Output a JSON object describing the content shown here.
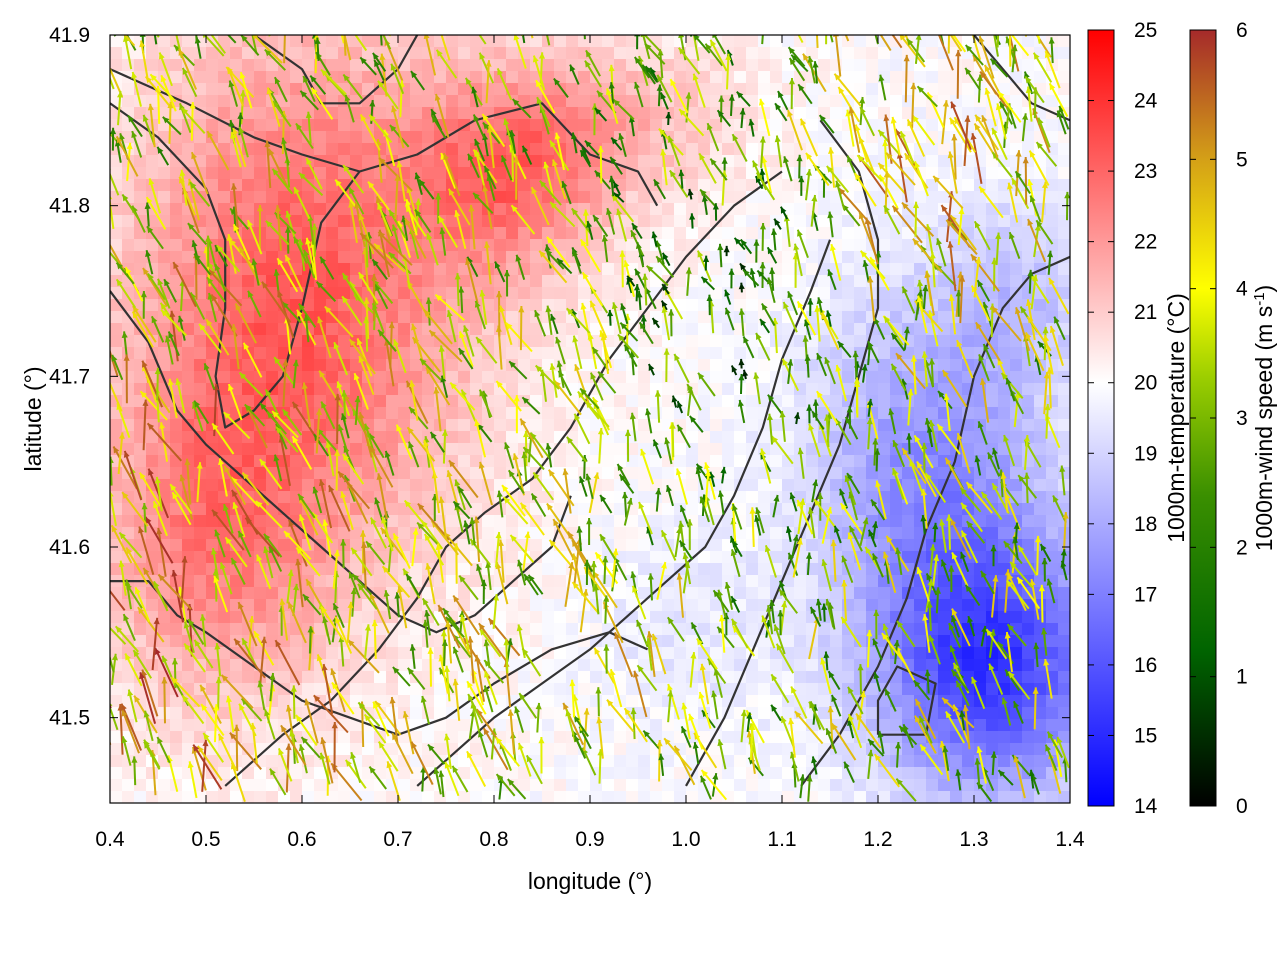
{
  "chart_data": {
    "type": "heatmap",
    "title": "",
    "xlabel": "longitude (°)",
    "ylabel": "latitude (°)",
    "xlim": [
      0.4,
      1.4
    ],
    "ylim": [
      41.45,
      41.9
    ],
    "x_ticks": [
      {
        "value": 0.4,
        "label": "0.4"
      },
      {
        "value": 0.5,
        "label": "0.5"
      },
      {
        "value": 0.6,
        "label": "0.6"
      },
      {
        "value": 0.7,
        "label": "0.7"
      },
      {
        "value": 0.8,
        "label": "0.8"
      },
      {
        "value": 0.9,
        "label": "0.9"
      },
      {
        "value": 1.0,
        "label": "1.0"
      },
      {
        "value": 1.1,
        "label": "1.1"
      },
      {
        "value": 1.2,
        "label": "1.2"
      },
      {
        "value": 1.3,
        "label": "1.3"
      },
      {
        "value": 1.4,
        "label": "1.4"
      }
    ],
    "y_ticks": [
      {
        "value": 41.5,
        "label": "41.5"
      },
      {
        "value": 41.6,
        "label": "41.6"
      },
      {
        "value": 41.7,
        "label": "41.7"
      },
      {
        "value": 41.8,
        "label": "41.8"
      },
      {
        "value": 41.9,
        "label": "41.9"
      }
    ],
    "grid": false,
    "temperature_colorbar": {
      "label": "1000m-temperature (°C)",
      "range": [
        14,
        25
      ],
      "colors": [
        "#0000ff",
        "#ffffff",
        "#ff0000"
      ],
      "ticks": [
        {
          "value": 14,
          "label": "14"
        },
        {
          "value": 15,
          "label": "15"
        },
        {
          "value": 16,
          "label": "16"
        },
        {
          "value": 17,
          "label": "17"
        },
        {
          "value": 18,
          "label": "18"
        },
        {
          "value": 19,
          "label": "19"
        },
        {
          "value": 20,
          "label": "20"
        },
        {
          "value": 21,
          "label": "21"
        },
        {
          "value": 22,
          "label": "22"
        },
        {
          "value": 23,
          "label": "23"
        },
        {
          "value": 24,
          "label": "24"
        },
        {
          "value": 25,
          "label": "25"
        }
      ]
    },
    "wind_colorbar": {
      "label_main": "1000m-wind speed (m s",
      "label_sup": "-1",
      "label_end": ")",
      "range": [
        0,
        6
      ],
      "colors": [
        "#000000",
        "#006400",
        "#7fbf00",
        "#ffff00",
        "#d4a017",
        "#a52a2a"
      ],
      "ticks": [
        {
          "value": 0,
          "label": "0"
        },
        {
          "value": 1,
          "label": "1"
        },
        {
          "value": 2,
          "label": "2"
        },
        {
          "value": 3,
          "label": "3"
        },
        {
          "value": 4,
          "label": "4"
        },
        {
          "value": 5,
          "label": "5"
        },
        {
          "value": 6,
          "label": "6"
        }
      ]
    },
    "temperature_field": {
      "base": 20,
      "anomalies": [
        {
          "lon": 0.6,
          "lat": 41.75,
          "amp": 3.2,
          "sx": 0.18,
          "sy": 0.16
        },
        {
          "lon": 0.82,
          "lat": 41.82,
          "amp": 2.5,
          "sx": 0.1,
          "sy": 0.06
        },
        {
          "lon": 0.5,
          "lat": 41.6,
          "amp": 1.8,
          "sx": 0.12,
          "sy": 0.1
        },
        {
          "lon": 0.95,
          "lat": 41.85,
          "amp": 1.2,
          "sx": 0.12,
          "sy": 0.05
        },
        {
          "lon": 1.32,
          "lat": 41.53,
          "amp": -4.5,
          "sx": 0.12,
          "sy": 0.08
        },
        {
          "lon": 1.25,
          "lat": 41.65,
          "amp": -2.5,
          "sx": 0.12,
          "sy": 0.1
        },
        {
          "lon": 1.35,
          "lat": 41.75,
          "amp": -1.2,
          "sx": 0.08,
          "sy": 0.06
        },
        {
          "lon": 1.0,
          "lat": 41.55,
          "amp": -0.6,
          "sx": 0.1,
          "sy": 0.06
        }
      ]
    },
    "contours": [
      [
        [
          0.4,
          41.88
        ],
        [
          0.48,
          41.86
        ],
        [
          0.55,
          41.84
        ],
        [
          0.6,
          41.83
        ],
        [
          0.66,
          41.82
        ],
        [
          0.72,
          41.83
        ],
        [
          0.78,
          41.85
        ],
        [
          0.85,
          41.86
        ],
        [
          0.9,
          41.83
        ],
        [
          0.95,
          41.82
        ],
        [
          0.97,
          41.8
        ]
      ],
      [
        [
          0.4,
          41.86
        ],
        [
          0.45,
          41.84
        ],
        [
          0.5,
          41.81
        ],
        [
          0.52,
          41.78
        ],
        [
          0.52,
          41.74
        ],
        [
          0.51,
          41.7
        ],
        [
          0.52,
          41.67
        ],
        [
          0.55,
          41.68
        ],
        [
          0.58,
          41.7
        ],
        [
          0.6,
          41.74
        ],
        [
          0.62,
          41.79
        ],
        [
          0.66,
          41.82
        ]
      ],
      [
        [
          0.4,
          41.75
        ],
        [
          0.44,
          41.72
        ],
        [
          0.47,
          41.68
        ],
        [
          0.5,
          41.66
        ],
        [
          0.54,
          41.64
        ],
        [
          0.58,
          41.62
        ],
        [
          0.62,
          41.6
        ],
        [
          0.66,
          41.58
        ],
        [
          0.7,
          41.56
        ],
        [
          0.74,
          41.55
        ],
        [
          0.78,
          41.56
        ],
        [
          0.82,
          41.58
        ],
        [
          0.86,
          41.6
        ],
        [
          0.88,
          41.63
        ]
      ],
      [
        [
          0.4,
          41.58
        ],
        [
          0.44,
          41.58
        ],
        [
          0.47,
          41.56
        ],
        [
          0.5,
          41.55
        ],
        [
          0.55,
          41.53
        ],
        [
          0.6,
          41.51
        ],
        [
          0.65,
          41.5
        ],
        [
          0.7,
          41.49
        ],
        [
          0.75,
          41.5
        ],
        [
          0.8,
          41.52
        ],
        [
          0.86,
          41.54
        ],
        [
          0.92,
          41.55
        ],
        [
          0.96,
          41.54
        ]
      ],
      [
        [
          0.52,
          41.46
        ],
        [
          0.58,
          41.49
        ],
        [
          0.63,
          41.51
        ],
        [
          0.68,
          41.54
        ],
        [
          0.72,
          41.57
        ],
        [
          0.75,
          41.6
        ],
        [
          0.79,
          41.62
        ],
        [
          0.84,
          41.64
        ],
        [
          0.88,
          41.67
        ],
        [
          0.92,
          41.71
        ],
        [
          0.96,
          41.74
        ],
        [
          1.0,
          41.77
        ],
        [
          1.05,
          41.8
        ],
        [
          1.1,
          41.82
        ]
      ],
      [
        [
          0.72,
          41.46
        ],
        [
          0.76,
          41.48
        ],
        [
          0.8,
          41.5
        ],
        [
          0.85,
          41.52
        ],
        [
          0.9,
          41.54
        ],
        [
          0.94,
          41.56
        ],
        [
          0.98,
          41.58
        ],
        [
          1.02,
          41.6
        ],
        [
          1.05,
          41.63
        ],
        [
          1.08,
          41.67
        ],
        [
          1.1,
          41.71
        ],
        [
          1.13,
          41.75
        ],
        [
          1.15,
          41.78
        ]
      ],
      [
        [
          1.0,
          41.46
        ],
        [
          1.04,
          41.5
        ],
        [
          1.07,
          41.54
        ],
        [
          1.1,
          41.58
        ],
        [
          1.13,
          41.62
        ],
        [
          1.16,
          41.66
        ],
        [
          1.18,
          41.7
        ],
        [
          1.2,
          41.74
        ],
        [
          1.2,
          41.78
        ],
        [
          1.18,
          41.82
        ],
        [
          1.14,
          41.85
        ]
      ],
      [
        [
          1.12,
          41.46
        ],
        [
          1.16,
          41.49
        ],
        [
          1.2,
          41.53
        ],
        [
          1.23,
          41.57
        ],
        [
          1.25,
          41.61
        ],
        [
          1.28,
          41.65
        ],
        [
          1.3,
          41.7
        ],
        [
          1.33,
          41.74
        ],
        [
          1.36,
          41.76
        ],
        [
          1.4,
          41.77
        ]
      ],
      [
        [
          1.2,
          41.49
        ],
        [
          1.25,
          41.49
        ],
        [
          1.26,
          41.52
        ],
        [
          1.22,
          41.53
        ],
        [
          1.2,
          41.51
        ],
        [
          1.2,
          41.49
        ]
      ],
      [
        [
          0.55,
          41.9
        ],
        [
          0.6,
          41.88
        ],
        [
          0.62,
          41.86
        ],
        [
          0.66,
          41.86
        ],
        [
          0.7,
          41.88
        ],
        [
          0.72,
          41.9
        ]
      ],
      [
        [
          1.3,
          41.9
        ],
        [
          1.33,
          41.88
        ],
        [
          1.36,
          41.86
        ],
        [
          1.4,
          41.85
        ]
      ]
    ],
    "wind_field": {
      "vortices": [
        {
          "lon": 0.95,
          "lat": 41.68,
          "strength": 0.9
        },
        {
          "lon": 1.28,
          "lat": 41.52,
          "strength": -0.7
        }
      ],
      "base_u": -0.35,
      "base_v": 1.0,
      "speed_regions": [
        {
          "lon": 0.5,
          "lat": 41.55,
          "speed": 5.5,
          "r": 0.18
        },
        {
          "lon": 0.65,
          "lat": 41.7,
          "speed": 4.0,
          "r": 0.2
        },
        {
          "lon": 0.9,
          "lat": 41.52,
          "speed": 4.2,
          "r": 0.15
        },
        {
          "lon": 1.05,
          "lat": 41.72,
          "speed": 1.2,
          "r": 0.12
        },
        {
          "lon": 1.25,
          "lat": 41.82,
          "speed": 5.0,
          "r": 0.12
        },
        {
          "lon": 1.3,
          "lat": 41.55,
          "speed": 3.5,
          "r": 0.14
        }
      ]
    }
  }
}
